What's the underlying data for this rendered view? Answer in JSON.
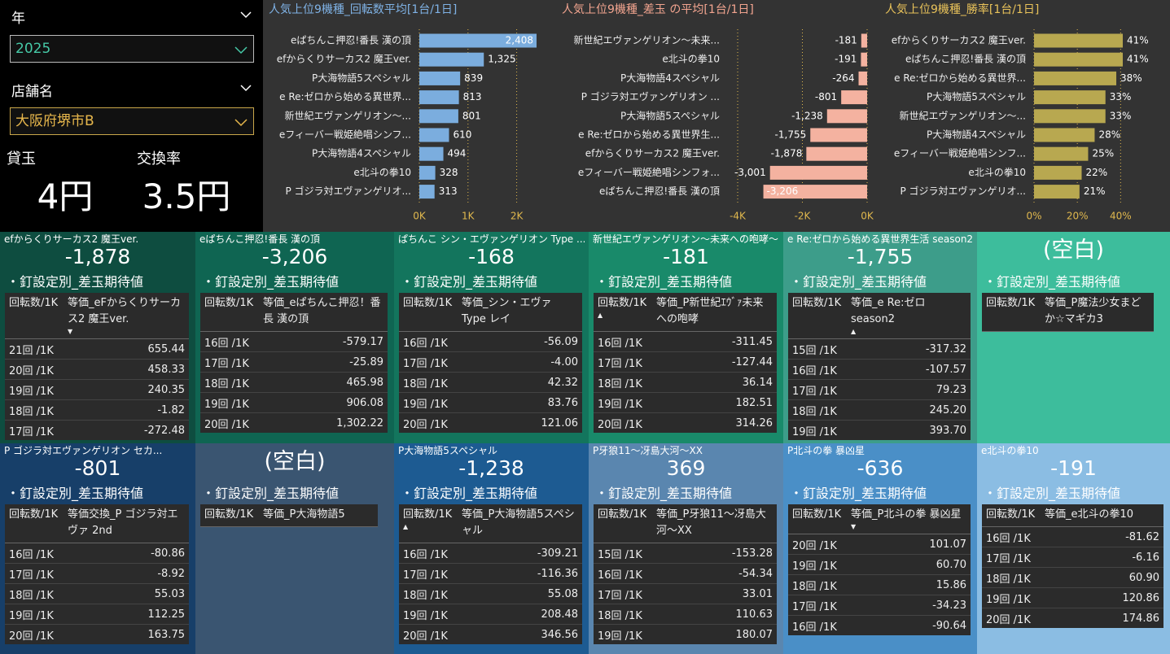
{
  "filters": [
    {
      "label": "年",
      "value": "2025"
    },
    {
      "label": "店舗名",
      "value": "大阪府堺市B"
    }
  ],
  "kpis": [
    {
      "label": "貸玉",
      "value": "4円"
    },
    {
      "label": "交換率",
      "value": "3.5円"
    }
  ],
  "chart_data": [
    {
      "type": "bar",
      "orientation": "horizontal",
      "title": "人気上位9機種_回転数平均[1台/1日]",
      "title_color": "#7fb2e5",
      "color": "#7badde",
      "tick_color": "#e0b84e",
      "grid": true,
      "categories": [
        "eぱちんこ押忍!番長 漢の頂",
        "efからくりサーカス2 魔王ver.",
        "P大海物語5スペシャル",
        "e Re:ゼロから始める異世界...",
        "新世紀エヴァンゲリオン～...",
        "eフィーバー戦姫絶唱シンフ...",
        "P大海物語4スペシャル",
        "e北斗の拳10",
        "P ゴジラ対エヴァンゲリオ..."
      ],
      "values": [
        2408,
        1325,
        839,
        813,
        801,
        610,
        494,
        328,
        313
      ],
      "value_labels": [
        "2,408",
        "1,325",
        "839",
        "813",
        "801",
        "610",
        "494",
        "328",
        "313"
      ],
      "xlim": [
        0,
        2408
      ],
      "xticks": [
        {
          "value": 0,
          "label": "0K"
        },
        {
          "value": 1000,
          "label": "1K"
        },
        {
          "value": 2000,
          "label": "2K"
        }
      ]
    },
    {
      "type": "bar",
      "orientation": "horizontal",
      "title": "人気上位9機種_差玉 の平均[1台/1日]",
      "title_color": "#f2a48f",
      "color": "#f4b2a0",
      "tick_color": "#e0b84e",
      "grid": true,
      "categories": [
        "新世紀エヴァンゲリオン～未来...",
        "e北斗の拳10",
        "P大海物語4スペシャル",
        "P ゴジラ対エヴァンゲリオン ...",
        "P大海物語5スペシャル",
        "e Re:ゼロから始める異世界生...",
        "efからくりサーカス2 魔王ver.",
        "eフィーバー戦姫絶唱シンフォ...",
        "eぱちんこ押忍!番長 漢の頂"
      ],
      "values": [
        -181,
        -191,
        -264,
        -801,
        -1238,
        -1755,
        -1878,
        -3001,
        -3206
      ],
      "value_labels": [
        "-181",
        "-191",
        "-264",
        "-801",
        "-1,238",
        "-1,755",
        "-1,878",
        "-3,001",
        "-3,206"
      ],
      "xlim": [
        -4000,
        0
      ],
      "xticks": [
        {
          "value": -4000,
          "label": "-4K"
        },
        {
          "value": -2000,
          "label": "-2K"
        },
        {
          "value": 0,
          "label": "0K"
        }
      ]
    },
    {
      "type": "bar",
      "orientation": "horizontal",
      "title": "人気上位9機種_勝率[1台/1日]",
      "title_color": "#e8c25a",
      "color": "#b8a850",
      "tick_color": "#e0b84e",
      "grid": true,
      "categories": [
        "efからくりサーカス2 魔王ver.",
        "eぱちんこ押忍!番長 漢の頂",
        "e Re:ゼロから始める異世界...",
        "P大海物語5スペシャル",
        "新世紀エヴァンゲリオン～...",
        "P大海物語4スペシャル",
        "eフィーバー戦姫絶唱シンフ...",
        "e北斗の拳10",
        "P ゴジラ対エヴァンゲリオ..."
      ],
      "values": [
        41,
        41,
        38,
        33,
        33,
        28,
        25,
        22,
        21
      ],
      "value_labels": [
        "41%",
        "41%",
        "38%",
        "33%",
        "33%",
        "28%",
        "25%",
        "22%",
        "21%"
      ],
      "xlim": [
        0,
        41
      ],
      "xticks": [
        {
          "value": 0,
          "label": "0%"
        },
        {
          "value": 20,
          "label": "20%"
        },
        {
          "value": 40,
          "label": "40%"
        }
      ]
    }
  ],
  "cards": [
    {
      "color": "#0e4d40",
      "title": "efからくりサーカス2 魔王ver.",
      "value": "-1,878",
      "section": "・釘設定別_差玉期待値",
      "header": [
        "回転数/1K",
        "等価_eFからくりサーカス2 魔王ver."
      ],
      "sort_indicator": "▼",
      "sort_column": 1,
      "rows": [
        [
          "21回 /1K",
          "655.44"
        ],
        [
          "20回 /1K",
          "458.33"
        ],
        [
          "19回 /1K",
          "240.35"
        ],
        [
          "18回 /1K",
          "-1.82"
        ],
        [
          "17回 /1K",
          "-272.48"
        ]
      ]
    },
    {
      "color": "#0f6552",
      "title": "eぱちんこ押忍!番長 漢の頂",
      "value": "-3,206",
      "section": "・釘設定別_差玉期待値",
      "header": [
        "回転数/1K",
        "等価_eぱちんこ押忍！番長 漢の頂"
      ],
      "rows": [
        [
          "16回 /1K",
          "-579.17"
        ],
        [
          "17回 /1K",
          "-25.89"
        ],
        [
          "18回 /1K",
          "465.98"
        ],
        [
          "19回 /1K",
          "906.08"
        ],
        [
          "20回 /1K",
          "1,302.22"
        ]
      ]
    },
    {
      "color": "#13755d",
      "title": "ぱちんこ シン・エヴァンゲリオン Type ...",
      "value": "-168",
      "section": "・釘設定別_差玉期待値",
      "header": [
        "回転数/1K",
        "等価_シン・エヴァ Type レイ"
      ],
      "rows": [
        [
          "16回 /1K",
          "-56.09"
        ],
        [
          "17回 /1K",
          "-4.00"
        ],
        [
          "18回 /1K",
          "42.32"
        ],
        [
          "19回 /1K",
          "83.76"
        ],
        [
          "20回 /1K",
          "121.06"
        ]
      ]
    },
    {
      "color": "#198a6a",
      "title": "新世紀エヴァンゲリオン～未来への咆哮～...",
      "value": "-181",
      "section": "・釘設定別_差玉期待値",
      "header": [
        "回転数/1K",
        "等価_P新世紀ｴｳﾞｧ未来への咆哮"
      ],
      "sort_indicator": "▲",
      "sort_column": 0,
      "rows": [
        [
          "16回 /1K",
          "-311.45"
        ],
        [
          "17回 /1K",
          "-127.44"
        ],
        [
          "18回 /1K",
          "36.14"
        ],
        [
          "19回 /1K",
          "182.51"
        ],
        [
          "20回 /1K",
          "314.26"
        ]
      ]
    },
    {
      "color": "#3d9d8a",
      "title": "e Re:ゼロから始める異世界生活 season2",
      "value": "-1,755",
      "section": "・釘設定別_差玉期待値",
      "header": [
        "回転数/1K",
        "等価_e Re:ゼロ season2"
      ],
      "sort_indicator": "▲",
      "sort_column": 1,
      "rows": [
        [
          "15回 /1K",
          "-317.32"
        ],
        [
          "16回 /1K",
          "-107.57"
        ],
        [
          "17回 /1K",
          "79.23"
        ],
        [
          "18回 /1K",
          "245.20"
        ],
        [
          "19回 /1K",
          "393.70"
        ]
      ]
    },
    {
      "color": "#3dbd9c",
      "value": "(空白)",
      "section": "・釘設定別_差玉期待値",
      "header": [
        "回転数/1K",
        "等価_P魔法少女まどか☆マギカ3"
      ],
      "rows": []
    },
    {
      "color": "#173f69",
      "title": "P ゴジラ対エヴァンゲリオン セカ...",
      "value": "-801",
      "section": "・釘設定別_差玉期待値",
      "header": [
        "回転数/1K",
        "等価交換_P ゴジラ対エヴァ 2nd"
      ],
      "rows": [
        [
          "16回 /1K",
          "-80.86"
        ],
        [
          "17回 /1K",
          "-8.92"
        ],
        [
          "18回 /1K",
          "55.03"
        ],
        [
          "19回 /1K",
          "112.25"
        ],
        [
          "20回 /1K",
          "163.75"
        ]
      ]
    },
    {
      "color": "#3a5571",
      "value": "(空白)",
      "section": "・釘設定別_差玉期待値",
      "header": [
        "回転数/1K",
        "等価_P大海物語5"
      ],
      "rows": []
    },
    {
      "color": "#1d5b92",
      "title": "P大海物語5スペシャル",
      "value": "-1,238",
      "section": "・釘設定別_差玉期待値",
      "header": [
        "回転数/1K",
        "等価_P大海物語5スペシャル"
      ],
      "sort_indicator": "▲",
      "sort_column": 0,
      "rows": [
        [
          "16回 /1K",
          "-309.21"
        ],
        [
          "17回 /1K",
          "-116.36"
        ],
        [
          "18回 /1K",
          "55.08"
        ],
        [
          "19回 /1K",
          "208.48"
        ],
        [
          "20回 /1K",
          "346.56"
        ]
      ]
    },
    {
      "color": "#5a86af",
      "title": "P牙狼11～冴島大河～XX",
      "value": "369",
      "section": "・釘設定別_差玉期待値",
      "header": [
        "回転数/1K",
        "等価_P牙狼11～冴島大河～XX"
      ],
      "rows": [
        [
          "15回 /1K",
          "-153.28"
        ],
        [
          "16回 /1K",
          "-54.34"
        ],
        [
          "17回 /1K",
          "33.01"
        ],
        [
          "18回 /1K",
          "110.63"
        ],
        [
          "19回 /1K",
          "180.07"
        ]
      ]
    },
    {
      "color": "#4a8fc7",
      "title": "P北斗の拳 暴凶星",
      "value": "-636",
      "section": "・釘設定別_差玉期待値",
      "header": [
        "回転数/1K",
        "等価_P北斗の拳 暴凶星"
      ],
      "sort_indicator": "▼",
      "sort_column": 1,
      "rows": [
        [
          "20回 /1K",
          "101.07"
        ],
        [
          "19回 /1K",
          "60.70"
        ],
        [
          "18回 /1K",
          "15.86"
        ],
        [
          "17回 /1K",
          "-34.23"
        ],
        [
          "16回 /1K",
          "-90.64"
        ]
      ]
    },
    {
      "color": "#8bbde3",
      "title": "e北斗の拳10",
      "value": "-191",
      "section": "・釘設定別_差玉期待値",
      "header": [
        "回転数/1K",
        "等価_e北斗の拳10"
      ],
      "rows": [
        [
          "16回 /1K",
          "-81.62"
        ],
        [
          "17回 /1K",
          "-6.16"
        ],
        [
          "18回 /1K",
          "60.90"
        ],
        [
          "19回 /1K",
          "120.86"
        ],
        [
          "20回 /1K",
          "174.86"
        ]
      ]
    }
  ]
}
